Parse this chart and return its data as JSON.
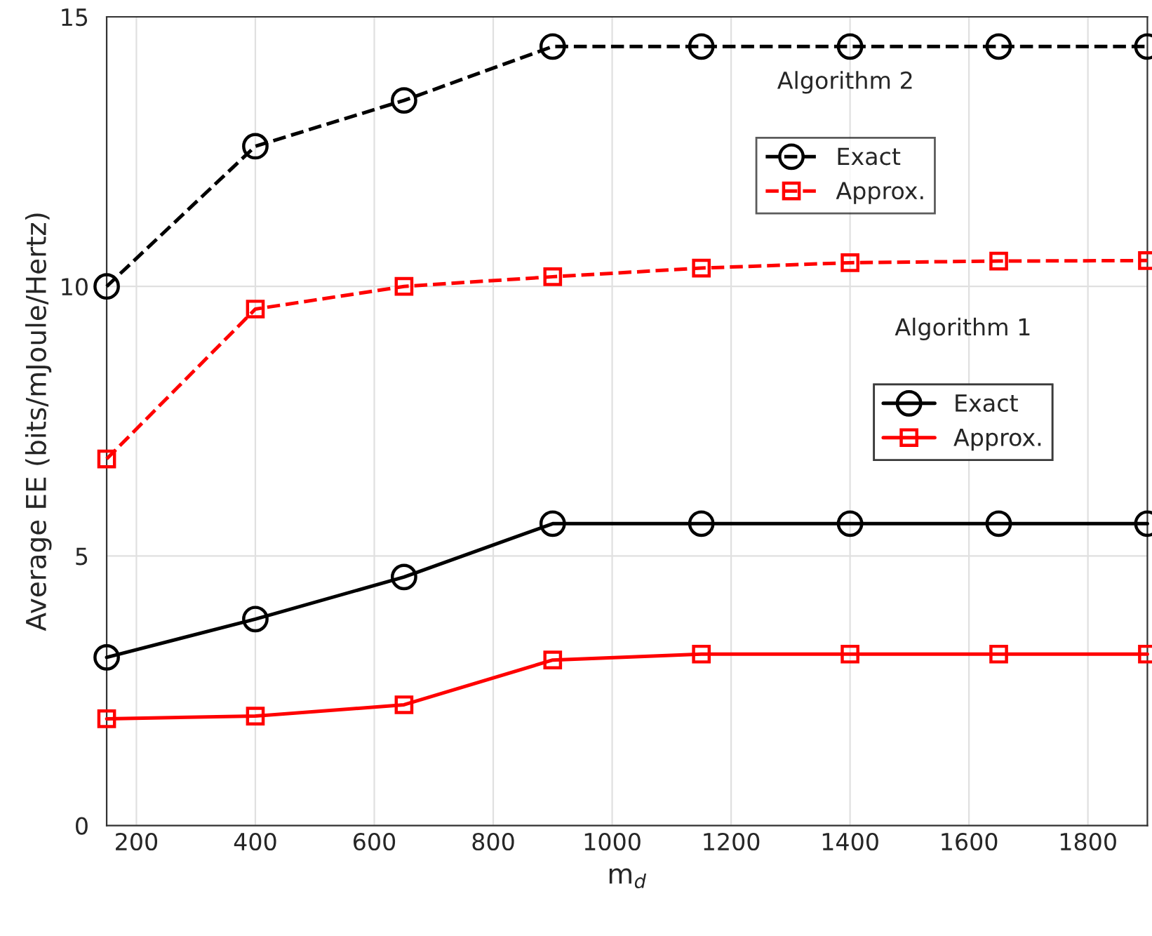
{
  "chart_data": {
    "type": "line",
    "xlabel": "m$_{d}$",
    "ylabel": "Average EE (bits/mJoule/Hertz)",
    "x": [
      150,
      400,
      650,
      900,
      1150,
      1400,
      1650,
      1900
    ],
    "xlim": [
      150,
      1900
    ],
    "xticks": [
      200,
      400,
      600,
      800,
      1000,
      1200,
      1400,
      1600,
      1800
    ],
    "ylim": [
      0,
      15
    ],
    "yticks": [
      0,
      5,
      10,
      15
    ],
    "grid": true,
    "legend": "right",
    "annotations": [
      "Algorithm 2",
      "Algorithm 1"
    ],
    "series": [
      {
        "name": "Exact",
        "color": "#000000",
        "marker": "circle",
        "line_style": "dashed",
        "values": [
          10.0,
          12.6,
          13.45,
          14.45,
          14.45,
          14.45,
          14.45,
          14.45
        ]
      },
      {
        "name": "Approx.",
        "color": "#ff0000",
        "marker": "square",
        "line_style": "dashed",
        "values": [
          6.8,
          9.58,
          10.0,
          10.18,
          10.34,
          10.44,
          10.47,
          10.48
        ]
      },
      {
        "name": "Exact",
        "color": "#000000",
        "marker": "circle",
        "line_style": "solid",
        "values": [
          3.12,
          3.83,
          4.61,
          5.6,
          5.6,
          5.6,
          5.6,
          5.6
        ]
      },
      {
        "name": "Approx.",
        "color": "#ff0000",
        "marker": "square",
        "line_style": "solid",
        "values": [
          1.98,
          2.03,
          2.24,
          3.07,
          3.18,
          3.18,
          3.18,
          3.18
        ]
      }
    ]
  }
}
